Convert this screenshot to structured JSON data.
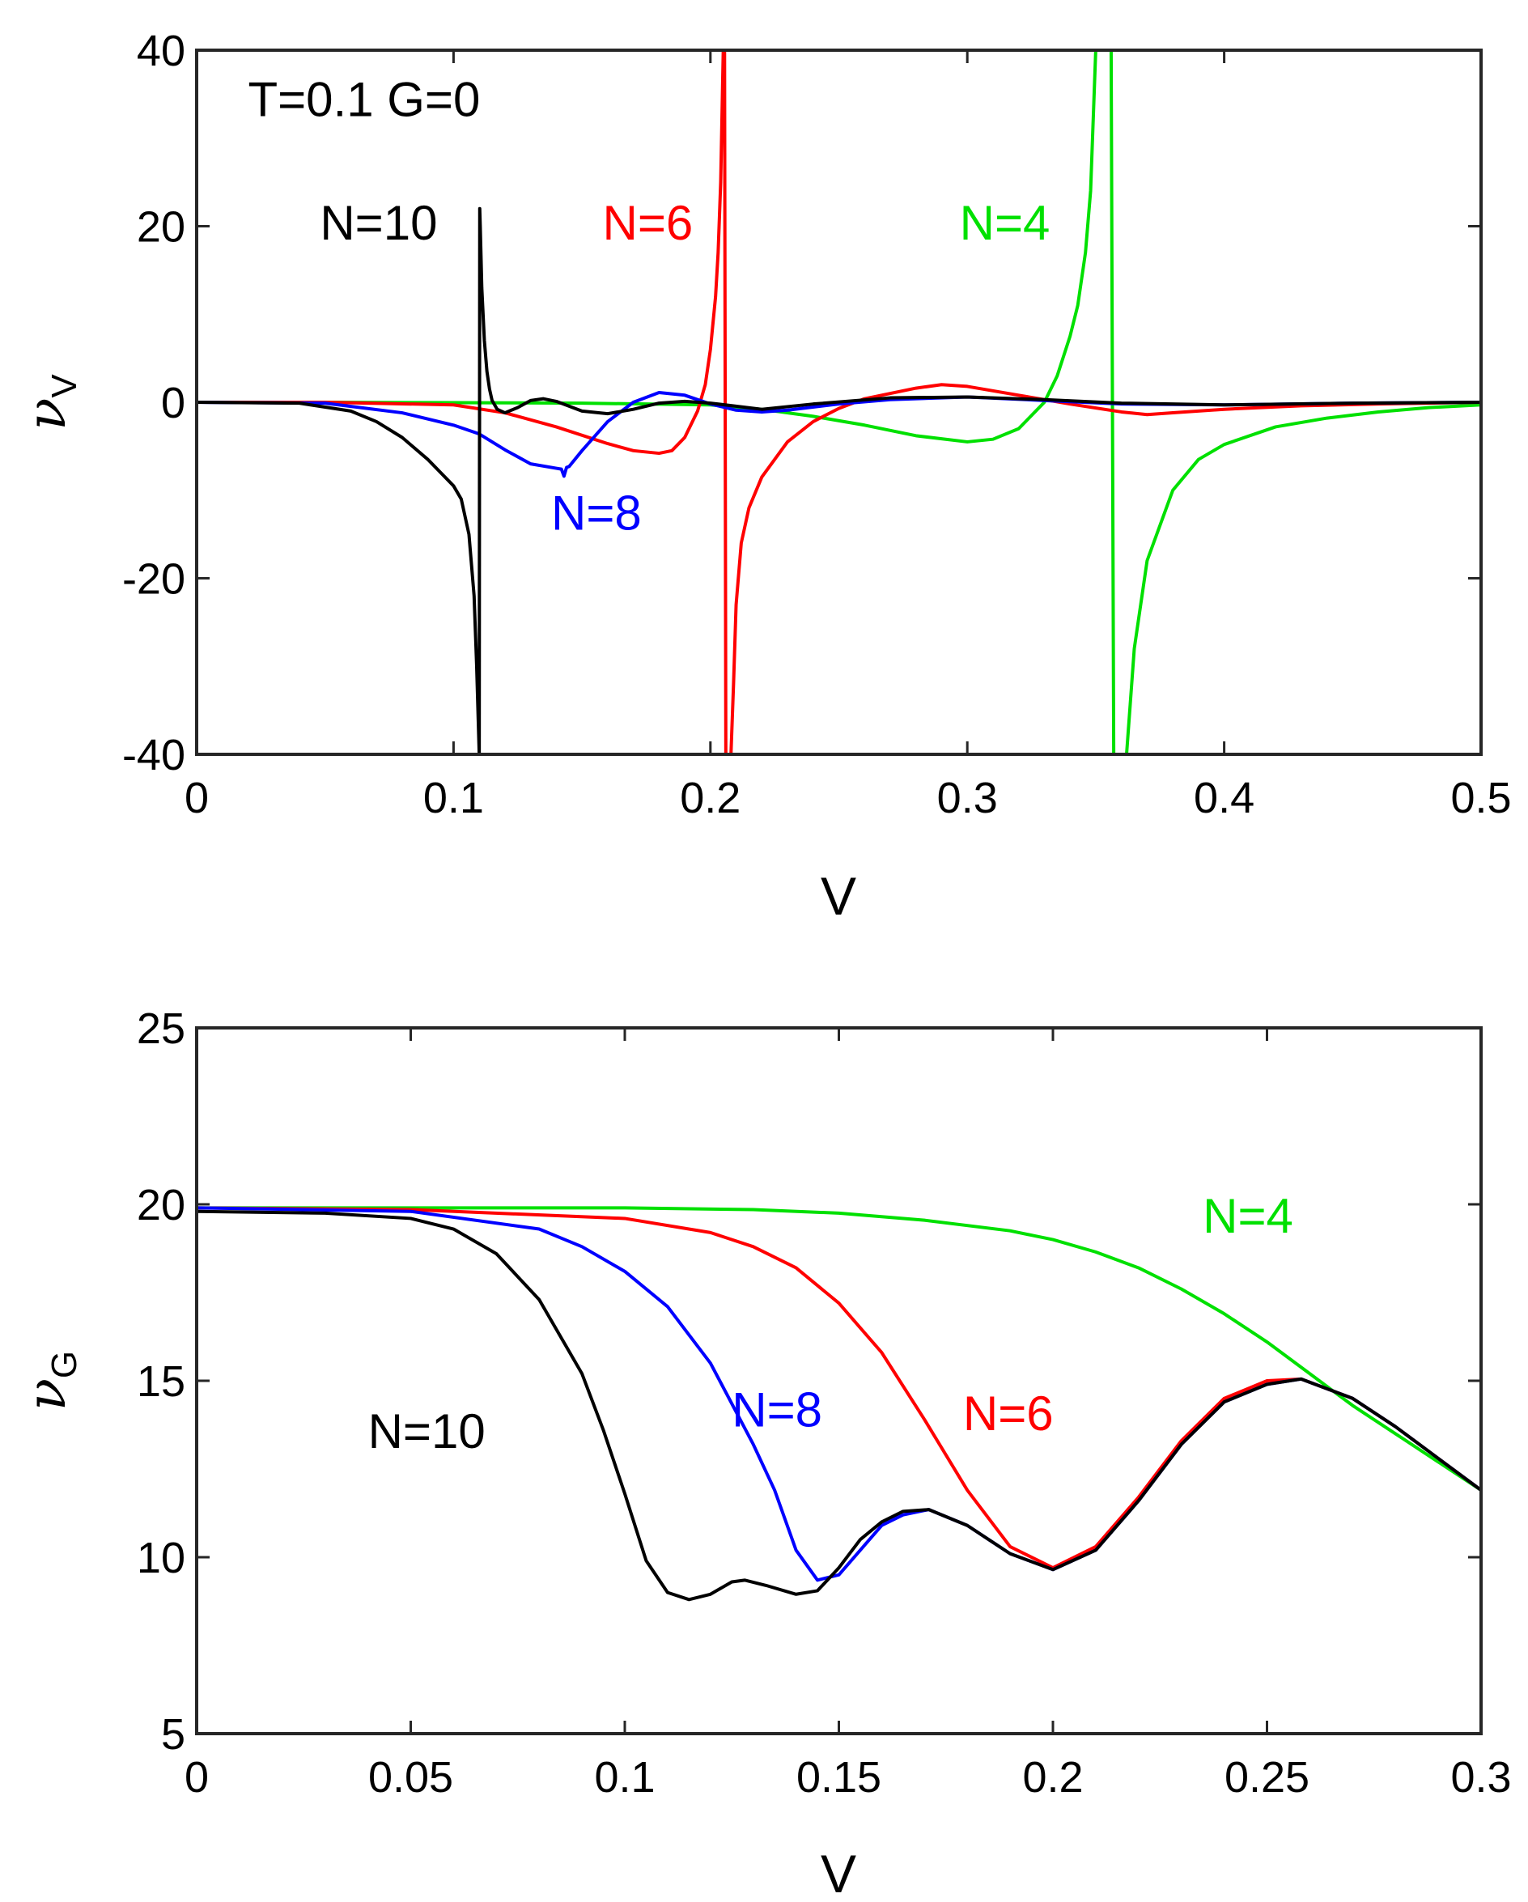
{
  "chart_data": [
    {
      "type": "line",
      "id": "top",
      "xlabel": "V",
      "ylabel": "ν",
      "ylabel_sub": "V",
      "xlim": [
        0,
        0.5
      ],
      "ylim": [
        -40,
        40
      ],
      "xticks": [
        0,
        0.1,
        0.2,
        0.3,
        0.4,
        0.5
      ],
      "xtick_labels": [
        "0",
        "0.1",
        "0.2",
        "0.3",
        "0.4",
        "0.5"
      ],
      "yticks": [
        -40,
        -20,
        0,
        20,
        40
      ],
      "ytick_labels": [
        "-40",
        "-20",
        "0",
        "20",
        "40"
      ],
      "annotations": [
        {
          "text": "T=0.1 G=0",
          "x": 0.02,
          "y": 32.5,
          "color": "#000000"
        },
        {
          "text": "N=10",
          "x": 0.048,
          "y": 18.5,
          "color": "#000000"
        },
        {
          "text": "N=6",
          "x": 0.158,
          "y": 18.5,
          "color": "#ff0000"
        },
        {
          "text": "N=4",
          "x": 0.297,
          "y": 18.5,
          "color": "#00e000"
        },
        {
          "text": "N=8",
          "x": 0.138,
          "y": -14.5,
          "color": "#0000ff"
        }
      ],
      "series": [
        {
          "name": "N=4",
          "color": "#00e000",
          "x": [
            0,
            0.05,
            0.1,
            0.15,
            0.2,
            0.22,
            0.24,
            0.26,
            0.28,
            0.3,
            0.31,
            0.32,
            0.33,
            0.335,
            0.34,
            0.343,
            0.346,
            0.348,
            0.35,
            0.351,
            0.352,
            0.353,
            0.354,
            0.355,
            0.356,
            0.357,
            0.358,
            0.36,
            0.362,
            0.365,
            0.37,
            0.38,
            0.39,
            0.4,
            0.42,
            0.44,
            0.46,
            0.48,
            0.5
          ],
          "y": [
            0,
            0,
            -0.05,
            -0.1,
            -0.3,
            -0.8,
            -1.6,
            -2.6,
            -3.8,
            -4.5,
            -4.2,
            -3,
            0,
            3,
            7.5,
            11,
            17,
            24,
            40,
            40,
            40,
            40,
            40,
            40,
            40,
            -40,
            -40,
            -40,
            -40,
            -28,
            -18,
            -10,
            -6.5,
            -4.8,
            -2.8,
            -1.8,
            -1.1,
            -0.6,
            -0.3
          ]
        },
        {
          "name": "N=6",
          "color": "#ff0000",
          "x": [
            0,
            0.05,
            0.1,
            0.12,
            0.14,
            0.16,
            0.17,
            0.18,
            0.185,
            0.19,
            0.195,
            0.198,
            0.2,
            0.202,
            0.203,
            0.204,
            0.205,
            0.2055,
            0.206,
            0.2065,
            0.207,
            0.208,
            0.209,
            0.21,
            0.212,
            0.215,
            0.22,
            0.23,
            0.24,
            0.25,
            0.26,
            0.28,
            0.29,
            0.3,
            0.32,
            0.34,
            0.36,
            0.37,
            0.38,
            0.4,
            0.43,
            0.46,
            0.5
          ],
          "y": [
            0,
            0,
            -0.3,
            -1.2,
            -2.8,
            -4.7,
            -5.5,
            -5.8,
            -5.5,
            -4,
            -1,
            2,
            6,
            12,
            17,
            25,
            40,
            40,
            -40,
            -40,
            -40,
            -40,
            -32,
            -23,
            -16,
            -12,
            -8.5,
            -4.5,
            -2.2,
            -0.7,
            0.4,
            1.6,
            2,
            1.8,
            0.8,
            -0.2,
            -1.1,
            -1.4,
            -1.2,
            -0.8,
            -0.4,
            -0.2,
            0
          ]
        },
        {
          "name": "N=8",
          "color": "#0000ff",
          "x": [
            0,
            0.05,
            0.08,
            0.1,
            0.11,
            0.12,
            0.13,
            0.14,
            0.142,
            0.143,
            0.144,
            0.145,
            0.15,
            0.16,
            0.17,
            0.18,
            0.19,
            0.2,
            0.21,
            0.22,
            0.23,
            0.25,
            0.27,
            0.3,
            0.33,
            0.36,
            0.4,
            0.45,
            0.5
          ],
          "y": [
            0,
            -0.1,
            -1.2,
            -2.6,
            -3.6,
            -5.4,
            -7,
            -7.5,
            -7.6,
            -8.4,
            -7.4,
            -7.3,
            -5.5,
            -2.2,
            0,
            1.1,
            0.8,
            -0.2,
            -0.9,
            -1.1,
            -0.9,
            -0.2,
            0.3,
            0.6,
            0.2,
            -0.2,
            -0.3,
            -0.1,
            0
          ]
        },
        {
          "name": "N=10",
          "color": "#000000",
          "x": [
            0,
            0.04,
            0.06,
            0.07,
            0.08,
            0.09,
            0.095,
            0.1,
            0.103,
            0.106,
            0.108,
            0.109,
            0.11,
            0.1102,
            0.1104,
            0.111,
            0.112,
            0.113,
            0.114,
            0.115,
            0.117,
            0.12,
            0.125,
            0.13,
            0.135,
            0.14,
            0.15,
            0.16,
            0.17,
            0.18,
            0.19,
            0.2,
            0.22,
            0.24,
            0.27,
            0.3,
            0.33,
            0.36,
            0.4,
            0.45,
            0.5
          ],
          "y": [
            0,
            -0.1,
            -1,
            -2.2,
            -4,
            -6.5,
            -8,
            -9.5,
            -11,
            -15,
            -22,
            -30,
            -40,
            22,
            20,
            13,
            7,
            3.5,
            1.5,
            0.2,
            -0.8,
            -1.2,
            -0.6,
            0.2,
            0.4,
            0.1,
            -1,
            -1.3,
            -0.8,
            -0.1,
            0.1,
            -0.1,
            -0.8,
            -0.2,
            0.5,
            0.6,
            0.3,
            -0.1,
            -0.3,
            -0.1,
            0
          ]
        }
      ]
    },
    {
      "type": "line",
      "id": "bottom",
      "xlabel": "V",
      "ylabel": "ν",
      "ylabel_sub": "G",
      "xlim": [
        0,
        0.3
      ],
      "ylim": [
        5,
        25
      ],
      "xticks": [
        0,
        0.05,
        0.1,
        0.15,
        0.2,
        0.25,
        0.3
      ],
      "xtick_labels": [
        "0",
        "0.05",
        "0.1",
        "0.15",
        "0.2",
        "0.25",
        "0.3"
      ],
      "yticks": [
        5,
        10,
        15,
        20,
        25
      ],
      "ytick_labels": [
        "5",
        "10",
        "15",
        "20",
        "25"
      ],
      "annotations": [
        {
          "text": "N=4",
          "x": 0.235,
          "y": 19.2,
          "color": "#00e000"
        },
        {
          "text": "N=6",
          "x": 0.179,
          "y": 13.6,
          "color": "#ff0000"
        },
        {
          "text": "N=8",
          "x": 0.125,
          "y": 13.7,
          "color": "#0000ff"
        },
        {
          "text": "N=10",
          "x": 0.04,
          "y": 13.1,
          "color": "#000000"
        }
      ],
      "series": [
        {
          "name": "N=4",
          "color": "#00e000",
          "x": [
            0,
            0.05,
            0.1,
            0.13,
            0.15,
            0.17,
            0.19,
            0.2,
            0.21,
            0.22,
            0.23,
            0.24,
            0.25,
            0.26,
            0.27,
            0.28,
            0.29,
            0.3
          ],
          "y": [
            19.9,
            19.9,
            19.9,
            19.85,
            19.75,
            19.55,
            19.25,
            19.0,
            18.65,
            18.2,
            17.6,
            16.9,
            16.1,
            15.2,
            14.3,
            13.5,
            12.7,
            11.9
          ]
        },
        {
          "name": "N=6",
          "color": "#ff0000",
          "x": [
            0,
            0.05,
            0.1,
            0.12,
            0.13,
            0.14,
            0.15,
            0.16,
            0.17,
            0.18,
            0.19,
            0.2,
            0.21,
            0.22,
            0.23,
            0.24,
            0.25,
            0.258,
            0.27,
            0.28,
            0.29,
            0.3
          ],
          "y": [
            19.9,
            19.85,
            19.6,
            19.2,
            18.8,
            18.2,
            17.2,
            15.8,
            13.9,
            11.9,
            10.3,
            9.7,
            10.3,
            11.7,
            13.3,
            14.5,
            15.0,
            15.05,
            14.5,
            13.7,
            12.8,
            11.9
          ]
        },
        {
          "name": "N=8",
          "color": "#0000ff",
          "x": [
            0,
            0.05,
            0.08,
            0.09,
            0.1,
            0.11,
            0.12,
            0.13,
            0.135,
            0.14,
            0.145,
            0.15,
            0.155,
            0.16,
            0.165,
            0.171,
            0.18,
            0.19,
            0.2,
            0.21,
            0.22,
            0.23,
            0.24,
            0.25,
            0.258,
            0.27,
            0.28,
            0.29,
            0.3
          ],
          "y": [
            19.9,
            19.8,
            19.3,
            18.8,
            18.1,
            17.1,
            15.5,
            13.2,
            11.9,
            10.2,
            9.35,
            9.5,
            10.2,
            10.9,
            11.2,
            11.35,
            10.9,
            10.1,
            9.65,
            10.2,
            11.6,
            13.2,
            14.4,
            14.9,
            15.05,
            14.5,
            13.7,
            12.8,
            11.9
          ]
        },
        {
          "name": "N=10",
          "color": "#000000",
          "x": [
            0,
            0.03,
            0.05,
            0.06,
            0.07,
            0.08,
            0.09,
            0.095,
            0.1,
            0.105,
            0.11,
            0.115,
            0.12,
            0.125,
            0.128,
            0.133,
            0.14,
            0.145,
            0.15,
            0.155,
            0.16,
            0.165,
            0.171,
            0.18,
            0.19,
            0.2,
            0.21,
            0.22,
            0.23,
            0.24,
            0.25,
            0.258,
            0.27,
            0.28,
            0.29,
            0.3
          ],
          "y": [
            19.8,
            19.75,
            19.6,
            19.3,
            18.6,
            17.3,
            15.2,
            13.6,
            11.8,
            9.9,
            9.0,
            8.8,
            8.95,
            9.3,
            9.35,
            9.2,
            8.95,
            9.05,
            9.7,
            10.5,
            11.0,
            11.3,
            11.35,
            10.9,
            10.1,
            9.65,
            10.2,
            11.6,
            13.2,
            14.4,
            14.9,
            15.05,
            14.5,
            13.7,
            12.8,
            11.9
          ]
        }
      ]
    }
  ]
}
